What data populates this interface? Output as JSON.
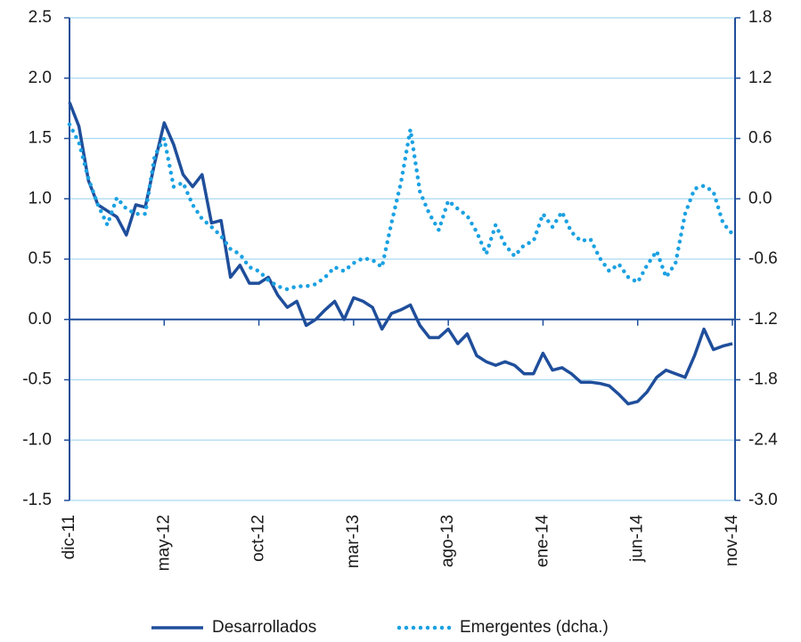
{
  "chart_data": {
    "type": "line",
    "categories": [
      "dic-11",
      null,
      null,
      null,
      null,
      null,
      null,
      null,
      null,
      null,
      "may-12",
      null,
      null,
      null,
      null,
      null,
      null,
      null,
      null,
      null,
      "oct-12",
      null,
      null,
      null,
      null,
      null,
      null,
      null,
      null,
      null,
      "mar-13",
      null,
      null,
      null,
      null,
      null,
      null,
      null,
      null,
      null,
      "ago-13",
      null,
      null,
      null,
      null,
      null,
      null,
      null,
      null,
      null,
      "ene-14",
      null,
      null,
      null,
      null,
      null,
      null,
      null,
      null,
      null,
      "jun-14",
      null,
      null,
      null,
      null,
      null,
      null,
      null,
      null,
      null,
      "nov-14"
    ],
    "series": [
      {
        "name": "Desarrollados",
        "color": "#1f4e9b",
        "style": "solid",
        "values": [
          1.8,
          1.6,
          1.15,
          0.95,
          0.9,
          0.85,
          0.7,
          0.95,
          0.93,
          1.3,
          1.63,
          1.45,
          1.2,
          1.1,
          1.2,
          0.8,
          0.82,
          0.35,
          0.45,
          0.3,
          0.3,
          0.35,
          0.2,
          0.1,
          0.15,
          -0.05,
          0.0,
          0.08,
          0.15,
          0.0,
          0.18,
          0.15,
          0.1,
          -0.08,
          0.05,
          0.08,
          0.12,
          -0.05,
          -0.15,
          -0.15,
          -0.08,
          -0.2,
          -0.12,
          -0.3,
          -0.35,
          -0.38,
          -0.35,
          -0.38,
          -0.45,
          -0.45,
          -0.28,
          -0.42,
          -0.4,
          -0.45,
          -0.52,
          -0.52,
          -0.53,
          -0.55,
          -0.62,
          -0.7,
          -0.68,
          -0.6,
          -0.48,
          -0.42,
          -0.45,
          -0.48,
          -0.3,
          -0.08,
          -0.25,
          -0.22,
          -0.2
        ]
      },
      {
        "name": "Emergentes (dcha.)",
        "color": "#1ba1e2",
        "style": "dotted",
        "axis": "y2",
        "values": [
          0.74,
          0.56,
          0.2,
          -0.06,
          -0.26,
          0.01,
          -0.1,
          -0.15,
          -0.15,
          0.43,
          0.6,
          0.12,
          0.16,
          -0.06,
          -0.2,
          -0.28,
          -0.37,
          -0.5,
          -0.55,
          -0.68,
          -0.72,
          -0.81,
          -0.87,
          -0.9,
          -0.87,
          -0.87,
          -0.85,
          -0.78,
          -0.68,
          -0.72,
          -0.64,
          -0.59,
          -0.61,
          -0.68,
          -0.24,
          0.16,
          0.69,
          0.07,
          -0.15,
          -0.31,
          -0.02,
          -0.1,
          -0.17,
          -0.33,
          -0.55,
          -0.26,
          -0.46,
          -0.57,
          -0.46,
          -0.42,
          -0.15,
          -0.28,
          -0.13,
          -0.33,
          -0.42,
          -0.4,
          -0.59,
          -0.72,
          -0.65,
          -0.78,
          -0.83,
          -0.66,
          -0.52,
          -0.78,
          -0.64,
          -0.15,
          0.1,
          0.13,
          0.07,
          -0.24,
          -0.35
        ]
      }
    ],
    "ylim": [
      -1.5,
      2.5
    ],
    "yticks": [
      -1.5,
      {
        "value": -1,
        "label": "-1.0"
      },
      -0.5,
      {
        "value": 0,
        "label": "0.0"
      },
      0.5,
      {
        "value": 1,
        "label": "1.0"
      },
      1.5,
      {
        "value": 2,
        "label": "2.0"
      },
      2.5
    ],
    "y2lim": [
      -3,
      1.8
    ],
    "y2ticks": [
      {
        "value": -3,
        "label": "-3.0"
      },
      -2.4,
      -1.8,
      -1.2,
      -0.6,
      {
        "value": 0,
        "label": "0.0"
      },
      0.6,
      1.2,
      1.8
    ],
    "grid": true,
    "legend": "bottom"
  }
}
